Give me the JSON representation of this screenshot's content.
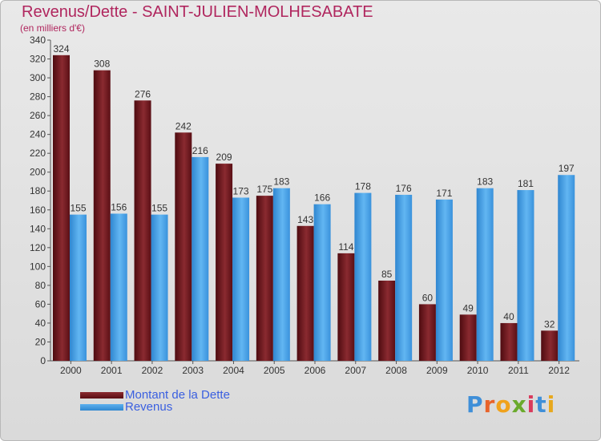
{
  "title": "Revenus/Dette - SAINT-JULIEN-MOLHESABATE",
  "subtitle": "(en milliers d'€)",
  "legend": {
    "dette_label": "Montant de la Dette",
    "revenus_label": "Revenus"
  },
  "logo": {
    "text": "Proxiti",
    "letters": [
      "P",
      "r",
      "o",
      "x",
      "i",
      "t",
      "i"
    ]
  },
  "colors": {
    "dette": "#6e1a20",
    "revenus": "#3f9be4",
    "title": "#b0265e",
    "legend_text": "#3a5fe0"
  },
  "chart_data": {
    "type": "bar",
    "title": "Revenus/Dette - SAINT-JULIEN-MOLHESABATE",
    "subtitle": "(en milliers d'€)",
    "xlabel": "",
    "ylabel": "",
    "ylim": [
      0,
      340
    ],
    "ytick_step": 20,
    "grid": false,
    "legend_position": "bottom-left",
    "categories": [
      "2000",
      "2001",
      "2002",
      "2003",
      "2004",
      "2005",
      "2006",
      "2007",
      "2008",
      "2009",
      "2010",
      "2011",
      "2012"
    ],
    "series": [
      {
        "name": "Montant de la Dette",
        "color": "#6e1a20",
        "values": [
          324,
          308,
          276,
          242,
          209,
          175,
          143,
          114,
          85,
          60,
          49,
          40,
          32
        ]
      },
      {
        "name": "Revenus",
        "color": "#3f9be4",
        "values": [
          155,
          156,
          155,
          216,
          173,
          183,
          166,
          178,
          176,
          171,
          183,
          181,
          197
        ]
      }
    ]
  }
}
